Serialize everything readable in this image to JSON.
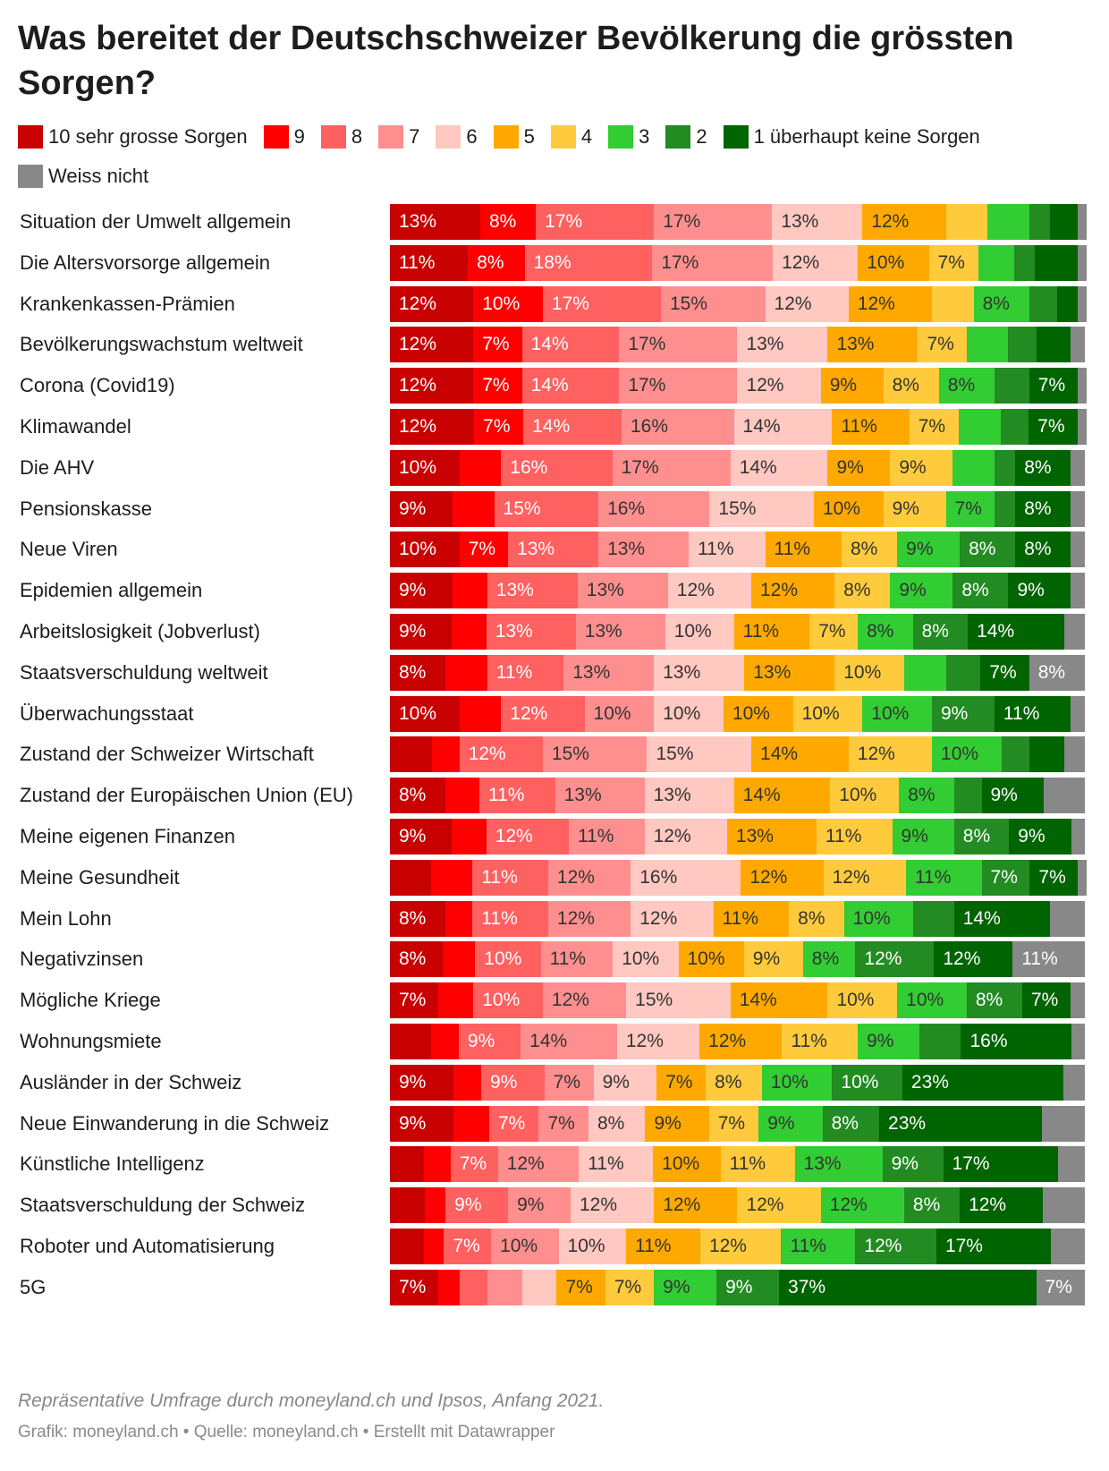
{
  "title": "Was bereitet der Deutschschweizer Bevölkerung die grössten Sorgen?",
  "note": "Repräsentative Umfrage durch moneyland.ch und Ipsos, Anfang 2021.",
  "credits": "Grafik: moneyland.ch • Quelle: moneyland.ch • Erstellt mit Datawrapper",
  "chart_data": {
    "type": "bar",
    "orientation": "horizontal",
    "stacked": true,
    "normalized": true,
    "legend_position": "top",
    "series": [
      {
        "name": "10 sehr grosse Sorgen",
        "color": "#c90000",
        "text_color": "#ffffff",
        "values": [
          13,
          11,
          12,
          12,
          12,
          12,
          10,
          9,
          10,
          9,
          9,
          8,
          10,
          6,
          8,
          9,
          6,
          8,
          8,
          7,
          6,
          9,
          9,
          5,
          5,
          5,
          7
        ]
      },
      {
        "name": "9",
        "color": "#ff0000",
        "text_color": "#ffffff",
        "values": [
          8,
          8,
          10,
          7,
          7,
          7,
          6,
          6,
          7,
          5,
          5,
          6,
          6,
          4,
          5,
          5,
          6,
          4,
          5,
          5,
          4,
          4,
          5,
          4,
          3,
          3,
          3
        ]
      },
      {
        "name": "8",
        "color": "#ff6060",
        "text_color": "#ffffff",
        "values": [
          17,
          18,
          17,
          14,
          14,
          14,
          16,
          15,
          13,
          13,
          13,
          11,
          12,
          12,
          11,
          12,
          11,
          11,
          10,
          10,
          9,
          9,
          7,
          7,
          9,
          7,
          4
        ]
      },
      {
        "name": "7",
        "color": "#ff8f8f",
        "text_color": "#333333",
        "values": [
          17,
          17,
          15,
          17,
          17,
          16,
          17,
          16,
          13,
          13,
          13,
          13,
          10,
          15,
          13,
          11,
          12,
          12,
          11,
          12,
          14,
          7,
          7,
          12,
          9,
          10,
          5
        ]
      },
      {
        "name": "6",
        "color": "#ffc8c0",
        "text_color": "#333333",
        "values": [
          13,
          12,
          12,
          13,
          12,
          14,
          14,
          15,
          11,
          12,
          10,
          13,
          10,
          15,
          13,
          12,
          16,
          12,
          10,
          15,
          12,
          9,
          8,
          11,
          12,
          10,
          5
        ]
      },
      {
        "name": "5",
        "color": "#ffa900",
        "text_color": "#333333",
        "values": [
          12,
          10,
          12,
          13,
          9,
          11,
          9,
          10,
          11,
          12,
          11,
          13,
          10,
          14,
          14,
          13,
          12,
          11,
          10,
          14,
          12,
          7,
          9,
          10,
          12,
          11,
          7
        ]
      },
      {
        "name": "4",
        "color": "#ffcb3d",
        "text_color": "#333333",
        "values": [
          6,
          7,
          6,
          7,
          8,
          7,
          9,
          9,
          8,
          8,
          7,
          10,
          10,
          12,
          10,
          11,
          12,
          8,
          9,
          10,
          11,
          8,
          7,
          11,
          12,
          12,
          7
        ]
      },
      {
        "name": "3",
        "color": "#32cd32",
        "text_color": "#333333",
        "values": [
          6,
          5,
          8,
          6,
          8,
          6,
          6,
          7,
          9,
          9,
          8,
          6,
          10,
          10,
          8,
          9,
          11,
          10,
          8,
          10,
          9,
          10,
          9,
          13,
          12,
          11,
          9
        ]
      },
      {
        "name": "2",
        "color": "#228b22",
        "text_color": "#ffffff",
        "values": [
          3,
          3,
          4,
          4,
          5,
          4,
          3,
          3,
          8,
          8,
          8,
          5,
          9,
          4,
          4,
          8,
          7,
          6,
          12,
          8,
          6,
          10,
          8,
          9,
          8,
          12,
          9
        ]
      },
      {
        "name": "1 überhaupt keine Sorgen",
        "color": "#006400",
        "text_color": "#ffffff",
        "values": [
          4,
          6,
          3,
          5,
          7,
          7,
          8,
          8,
          8,
          9,
          14,
          7,
          11,
          5,
          9,
          9,
          7,
          14,
          12,
          7,
          16,
          23,
          23,
          17,
          12,
          17,
          37
        ]
      },
      {
        "name": "Weiss nicht",
        "color": "#888888",
        "text_color": "#ffffff",
        "values": [
          1,
          1,
          1,
          2,
          1,
          1,
          2,
          2,
          2,
          2,
          3,
          8,
          2,
          3,
          6,
          2,
          1,
          5,
          11,
          2,
          2,
          3,
          6,
          4,
          6,
          5,
          7
        ]
      }
    ],
    "label_threshold": 7,
    "categories": [
      "Situation der Umwelt allgemein",
      "Die Altersvorsorge allgemein",
      "Krankenkassen-Prämien",
      "Bevölkerungswachstum weltweit",
      "Corona (Covid19)",
      "Klimawandel",
      "Die AHV",
      "Pensionskasse",
      "Neue Viren",
      "Epidemien allgemein",
      "Arbeitslosigkeit (Jobverlust)",
      "Staatsverschuldung weltweit",
      "Überwachungsstaat",
      "Zustand der Schweizer Wirtschaft",
      "Zustand der Europäischen Union (EU)",
      "Meine eigenen Finanzen",
      "Meine Gesundheit",
      "Mein Lohn",
      "Negativzinsen",
      "Mögliche Kriege",
      "Wohnungsmiete",
      "Ausländer in der Schweiz",
      "Neue Einwanderung in die Schweiz",
      "Künstliche Intelligenz",
      "Staatsverschuldung der Schweiz",
      "Roboter und Automatisierung",
      "5G"
    ]
  }
}
